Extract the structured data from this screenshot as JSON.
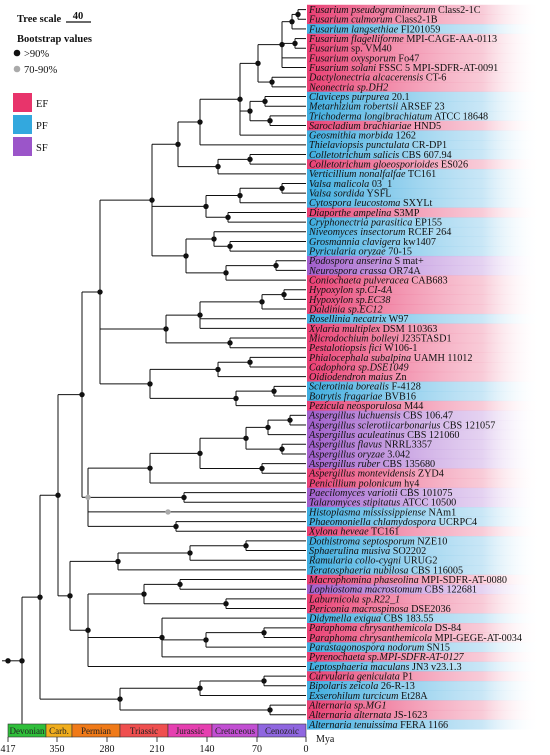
{
  "legend": {
    "tree_scale_label": "Tree scale",
    "tree_scale_value": "40",
    "bootstrap_title": "Bootstrap values",
    "bootstrap_high": ">90%",
    "bootstrap_mid": "70-90%",
    "categories": [
      {
        "code": "EF",
        "color": "#e8346b"
      },
      {
        "code": "PF",
        "color": "#33a8de"
      },
      {
        "code": "SF",
        "color": "#9b55c9"
      }
    ]
  },
  "axis": {
    "ticks": [
      "417",
      "350",
      "280",
      "210",
      "140",
      "70",
      "0"
    ],
    "unit": "Mya",
    "periods": [
      {
        "name": "Devonian",
        "color": "#2fbf3a"
      },
      {
        "name": "Carb.",
        "color": "#f0ad1c"
      },
      {
        "name": "Permian",
        "color": "#f07a18"
      },
      {
        "name": "Triassic",
        "color": "#ef4f4f"
      },
      {
        "name": "Jurassic",
        "color": "#e63fb0"
      },
      {
        "name": "Cretaceous",
        "color": "#c24fd3"
      },
      {
        "name": "Cenozoic",
        "color": "#8f66e0"
      }
    ]
  },
  "taxa": [
    {
      "genus": "Fusarium pseudograminearum",
      "rest": " Class2-1C",
      "cat": "EF"
    },
    {
      "genus": "Fusarium culmorum",
      "rest": " Class2-1B",
      "cat": "EF"
    },
    {
      "genus": "Fusarium langsethiae",
      "rest": " FI201059",
      "cat": "PF"
    },
    {
      "genus": "Fusarium flagelliforme",
      "rest": " MPI-CAGE-AA-0113",
      "cat": "EF"
    },
    {
      "genus": "Fusarium",
      "rest": " sp. VM40",
      "cat": "EF"
    },
    {
      "genus": "Fusarium oxysporum",
      "rest": " Fo47",
      "cat": "EF"
    },
    {
      "genus": "Fusarium solani",
      "rest": " FSSC 5 MPI-SDFR-AT-0091",
      "cat": "EF"
    },
    {
      "genus": "Dactylonectria alcacerensis",
      "rest": " CT-6",
      "cat": "EF"
    },
    {
      "genus": "Neonectria sp.DH2",
      "rest": "",
      "cat": "EF"
    },
    {
      "genus": "Claviceps purpurea",
      "rest": " 20.1",
      "cat": "PF"
    },
    {
      "genus": "Metarhizium robertsii",
      "rest": " ARSEF 23",
      "cat": "PF"
    },
    {
      "genus": "Trichoderma longibrachiatum",
      "rest": " ATCC 18648",
      "cat": "PF"
    },
    {
      "genus": "Sarocladium brachiariae",
      "rest": " HND5",
      "cat": "EF"
    },
    {
      "genus": "Geosmithia morbida",
      "rest": " 1262",
      "cat": "PF"
    },
    {
      "genus": "Thielaviopsis punctulata",
      "rest": " CR-DP1",
      "cat": "PF"
    },
    {
      "genus": "Colletotrichum salicis",
      "rest": " CBS 607.94",
      "cat": "PF"
    },
    {
      "genus": "Colletotrichum gloeosporioides",
      "rest": " ES026",
      "cat": "EF"
    },
    {
      "genus": "Verticillium nonalfalfae",
      "rest": " TC161",
      "cat": "PF"
    },
    {
      "genus": "Valsa malicola",
      "rest": " 03_1",
      "cat": "PF"
    },
    {
      "genus": "Valsa sordida",
      "rest": " YSFL",
      "cat": "PF"
    },
    {
      "genus": "Cytospora leucostoma",
      "rest": " SXYLt",
      "cat": "PF"
    },
    {
      "genus": "Diaporthe ampelina",
      "rest": " S3MP",
      "cat": "EF"
    },
    {
      "genus": "Cryphonectria parasitica",
      "rest": " EP155",
      "cat": "PF"
    },
    {
      "genus": "Niveomyces insectorum",
      "rest": " RCEF 264",
      "cat": "PF"
    },
    {
      "genus": "Grosmannia clavigera",
      "rest": " kw1407",
      "cat": "PF"
    },
    {
      "genus": "Pyricularia oryzae",
      "rest": " 70-15",
      "cat": "PF"
    },
    {
      "genus": "Podospora anserina",
      "rest": " S mat+",
      "cat": "SF"
    },
    {
      "genus": "Neurospora crassa",
      "rest": " OR74A",
      "cat": "SF"
    },
    {
      "genus": "Coniochaeta pulveracea",
      "rest": " CAB683",
      "cat": "EF"
    },
    {
      "genus": "Hypoxylon sp.CI-4A",
      "rest": "",
      "cat": "EF"
    },
    {
      "genus": "Hypoxylon sp.EC38",
      "rest": "",
      "cat": "EF"
    },
    {
      "genus": "Daldinia sp.EC12",
      "rest": "",
      "cat": "EF"
    },
    {
      "genus": "Rosellinia necatrix",
      "rest": " W97",
      "cat": "PF"
    },
    {
      "genus": "Xylaria multiplex",
      "rest": " DSM 110363",
      "cat": "EF"
    },
    {
      "genus": "Microdochium bolleyi",
      "rest": " J235TASD1",
      "cat": "EF"
    },
    {
      "genus": "Pestalotiopsis fici",
      "rest": " W106-1",
      "cat": "EF"
    },
    {
      "genus": "Phialocephala subalpina",
      "rest": " UAMH 11012",
      "cat": "EF"
    },
    {
      "genus": "Cadophora sp.DSE1049",
      "rest": "",
      "cat": "EF"
    },
    {
      "genus": "Oidiodendron maius",
      "rest": " Zn",
      "cat": "EF"
    },
    {
      "genus": "Sclerotinia borealis",
      "rest": " F-4128",
      "cat": "PF"
    },
    {
      "genus": "Botrytis fragariae",
      "rest": " BVB16",
      "cat": "PF"
    },
    {
      "genus": "Pezicula neosporulosa",
      "rest": " M44",
      "cat": "EF"
    },
    {
      "genus": "Aspergillus luchuensis",
      "rest": " CBS 106.47",
      "cat": "SF"
    },
    {
      "genus": "Aspergillus sclerotiicarbonarius",
      "rest": " CBS 121057",
      "cat": "SF"
    },
    {
      "genus": "Aspergillus aculeatinus",
      "rest": " CBS 121060",
      "cat": "SF"
    },
    {
      "genus": "Aspergillus flavus",
      "rest": " NRRL3357",
      "cat": "SF"
    },
    {
      "genus": "Aspergillus oryzae",
      "rest": " 3.042",
      "cat": "SF"
    },
    {
      "genus": "Aspergillus ruber",
      "rest": " CBS 135680",
      "cat": "SF"
    },
    {
      "genus": "Aspergillus montevidensis",
      "rest": " ZYD4",
      "cat": "EF"
    },
    {
      "genus": "Penicillium polonicum",
      "rest": " hy4",
      "cat": "EF"
    },
    {
      "genus": "Paecilomyces variotii",
      "rest": " CBS 101075",
      "cat": "SF"
    },
    {
      "genus": "Talaromyces stipitatus",
      "rest": " ATCC 10500",
      "cat": "SF"
    },
    {
      "genus": "Histoplasma mississippiense",
      "rest": " NAm1",
      "cat": "PF"
    },
    {
      "genus": "Phaeomoniella chlamydospora",
      "rest": " UCRPC4",
      "cat": "PF"
    },
    {
      "genus": "Xylona heveae",
      "rest": " TC161",
      "cat": "EF"
    },
    {
      "genus": "Dothistroma septosporum",
      "rest": " NZE10",
      "cat": "PF"
    },
    {
      "genus": "Sphaerulina musiva",
      "rest": " SO2202",
      "cat": "PF"
    },
    {
      "genus": "Ramularia collo-cygni",
      "rest": " URUG2",
      "cat": "PF"
    },
    {
      "genus": "Teratosphaeria nubilosa",
      "rest": " CBS 116005",
      "cat": "PF"
    },
    {
      "genus": "Macrophomina phaseolina",
      "rest": " MPI-SDFR-AT-0080",
      "cat": "EF"
    },
    {
      "genus": "Lophiostoma macrostomum",
      "rest": " CBS 122681",
      "cat": "SF"
    },
    {
      "genus": "Laburnicola sp.R22_1",
      "rest": "",
      "cat": "EF"
    },
    {
      "genus": "Periconia macrospinosa",
      "rest": " DSE2036",
      "cat": "EF"
    },
    {
      "genus": "Didymella exigua",
      "rest": " CBS 183.55",
      "cat": "PF"
    },
    {
      "genus": "Paraphoma chrysanthemicola",
      "rest": " DS-84",
      "cat": "EF"
    },
    {
      "genus": "Paraphoma chrysanthemicola",
      "rest": " MPI-GEGE-AT-0034",
      "cat": "EF"
    },
    {
      "genus": "Parastagonospora nodorum",
      "rest": " SN15",
      "cat": "PF"
    },
    {
      "genus": "Pyrenochaeta sp.MPI-SDFR-AT-0127",
      "rest": "",
      "cat": "EF"
    },
    {
      "genus": "Leptosphaeria maculans",
      "rest": " JN3 v23.1.3",
      "cat": "PF"
    },
    {
      "genus": "Curvularia geniculata",
      "rest": " P1",
      "cat": "EF"
    },
    {
      "genus": "Bipolaris zeicola",
      "rest": " 26-R-13",
      "cat": "PF"
    },
    {
      "genus": "Exserohilum turcicum",
      "rest": " Et28A",
      "cat": "PF"
    },
    {
      "genus": "Alternaria sp.MG1",
      "rest": "",
      "cat": "EF"
    },
    {
      "genus": "Alternaria alternata",
      "rest": " JS-1623",
      "cat": "EF"
    },
    {
      "genus": "Alternaria tenuissima",
      "rest": " FERA 1166",
      "cat": "PF"
    }
  ]
}
